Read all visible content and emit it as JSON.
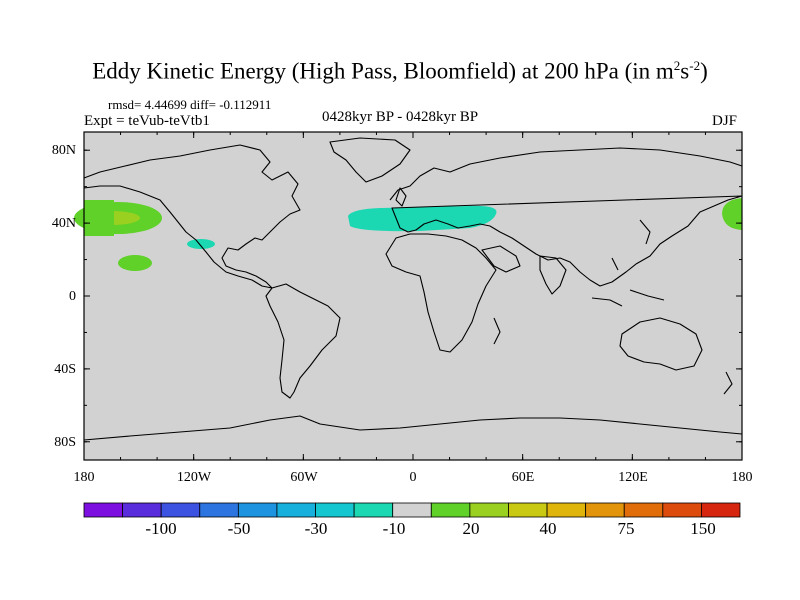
{
  "title": {
    "main": "Eddy Kinetic Energy (High Pass, Bloomfield) at 200 hPa (in m",
    "unit_sup1": "2",
    "unit_mid": "s",
    "unit_sup2": "-2",
    "close": ")"
  },
  "stats": "rmsd= 4.44699 diff= -0.112911",
  "expt": "Expt = teVub-teVtb1",
  "period": "0428kyr BP - 0428kyr BP",
  "season": "DJF",
  "axes": {
    "y_labels": [
      "80N",
      "40N",
      "0",
      "40S",
      "80S"
    ],
    "y_values": [
      80,
      40,
      0,
      -40,
      -80
    ],
    "x_labels": [
      "180",
      "120W",
      "60W",
      "0",
      "60E",
      "120E",
      "180"
    ],
    "x_values": [
      -180,
      -120,
      -60,
      0,
      60,
      120,
      180
    ]
  },
  "colorbar": {
    "colors": [
      "#7d10e0",
      "#5a2ddc",
      "#3c52e0",
      "#2c74e0",
      "#1e93e0",
      "#17b0dc",
      "#13c6d0",
      "#1bd8b2",
      "#d2d2d2",
      "#5fd128",
      "#9ad020",
      "#c9c812",
      "#dfb40b",
      "#e2940a",
      "#e06c0a",
      "#dc4a0c",
      "#d6260f"
    ],
    "labels": [
      "-100",
      "-50",
      "-30",
      "-10",
      "20",
      "40",
      "75",
      "150"
    ]
  },
  "legend_colors": {
    "land_ocean": "#d2d2d2",
    "coast": "#000000"
  }
}
